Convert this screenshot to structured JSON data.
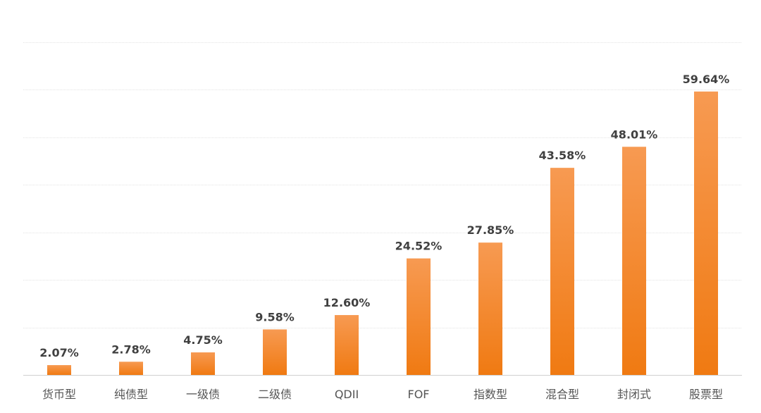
{
  "chart_data": {
    "type": "bar",
    "categories": [
      "货币型",
      "纯债型",
      "一级债",
      "二级债",
      "QDII",
      "FOF",
      "指数型",
      "混合型",
      "封闭式",
      "股票型"
    ],
    "values": [
      2.07,
      2.78,
      4.75,
      9.58,
      12.6,
      24.52,
      27.85,
      43.58,
      48.01,
      59.64
    ],
    "data_labels": [
      "2.07%",
      "2.78%",
      "4.75%",
      "9.58%",
      "12.60%",
      "24.52%",
      "27.85%",
      "43.58%",
      "48.01%",
      "59.64%"
    ],
    "title": "",
    "xlabel": "",
    "ylabel": "",
    "ylim": [
      0,
      70
    ],
    "grid": true,
    "legend": "none",
    "colors": {
      "bar_top": "#f79a52",
      "bar_bottom": "#f07a12",
      "value_text": "#404040",
      "category_text": "#555555",
      "gridline": "#e3e3e3"
    }
  }
}
